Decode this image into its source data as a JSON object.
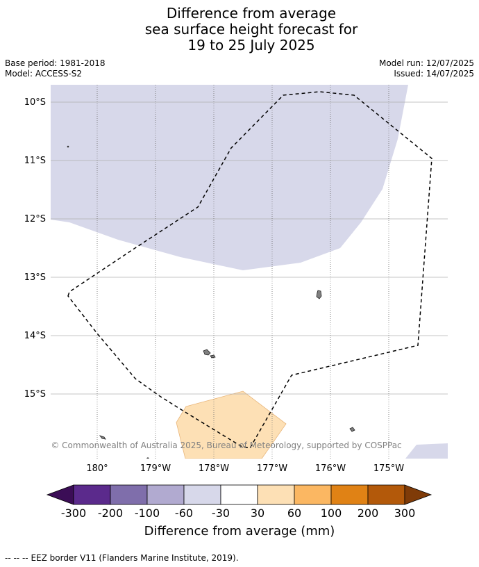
{
  "title": {
    "line1": "Difference from average",
    "line2": "sea surface height forecast for",
    "line3": "19 to 25 July 2025"
  },
  "meta_left": {
    "base_period": "Base period: 1981-2018",
    "model": "Model: ACCESS-S2"
  },
  "meta_right": {
    "model_run": "Model run: 12/07/2025",
    "issued": "Issued: 14/07/2025"
  },
  "map": {
    "lat_labels": [
      "10°S",
      "11°S",
      "12°S",
      "13°S",
      "14°S",
      "15°S"
    ],
    "lon_labels": [
      "180°",
      "179°W",
      "178°W",
      "177°W",
      "176°W",
      "175°W"
    ],
    "copyright": "© Commonwealth of Australia 2025, Bureau of Meteorology, supported by COSPPac",
    "colors": {
      "light_purple": "#d7d8ea",
      "light_orange": "#fde0b5",
      "land": "#808080",
      "grid": "#b0b0b0"
    }
  },
  "colorbar": {
    "labels": [
      "-300",
      "-200",
      "-100",
      "-60",
      "-30",
      "30",
      "60",
      "100",
      "200",
      "300"
    ],
    "colors": [
      "#3b0d56",
      "#5b2a8c",
      "#7f6eab",
      "#b1aad0",
      "#d7d8ea",
      "#ffffff",
      "#fde0b5",
      "#fbb762",
      "#e08215",
      "#b3590a",
      "#7f3b08"
    ],
    "title": "Difference from average (mm)"
  },
  "footer": {
    "legend_symbol": "--  --  --",
    "text": "EEZ border V11 (Flanders Marine Institute, 2019)."
  }
}
